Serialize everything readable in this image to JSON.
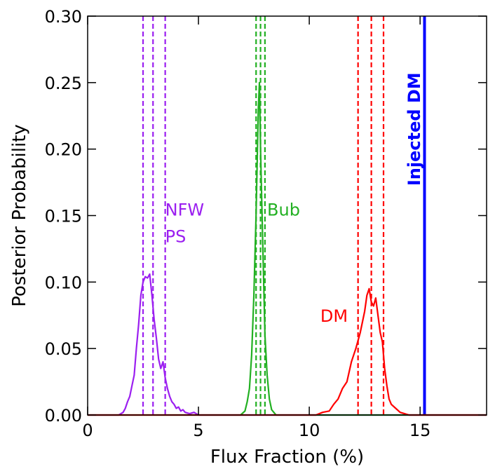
{
  "chart_data": {
    "type": "line",
    "title": "",
    "xlabel": "Flux Fraction (%)",
    "ylabel": "Posterior Probability",
    "xlim": [
      0,
      18
    ],
    "ylim": [
      0,
      0.3
    ],
    "xticks": [
      0,
      5,
      10,
      15
    ],
    "xtick_labels": [
      "0",
      "5",
      "10",
      "15"
    ],
    "yticks": [
      0,
      0.05,
      0.1,
      0.15,
      0.2,
      0.25,
      0.3
    ],
    "ytick_labels": [
      "0.00",
      "0.05",
      "0.10",
      "0.15",
      "0.20",
      "0.25",
      "0.30"
    ],
    "grid": false,
    "series": [
      {
        "name": "NFW PS",
        "color": "#9b1ff0",
        "x": [
          0,
          1.4,
          1.6,
          1.7,
          1.8,
          1.9,
          2.0,
          2.1,
          2.2,
          2.3,
          2.4,
          2.5,
          2.6,
          2.7,
          2.8,
          2.9,
          3.0,
          3.1,
          3.2,
          3.3,
          3.4,
          3.5,
          3.6,
          3.7,
          3.8,
          3.9,
          4.0,
          4.1,
          4.2,
          4.3,
          4.4,
          4.6,
          4.8,
          5.0,
          5.2,
          18
        ],
        "y": [
          0,
          0,
          0.002,
          0.005,
          0.01,
          0.014,
          0.022,
          0.03,
          0.05,
          0.068,
          0.09,
          0.1,
          0.104,
          0.103,
          0.106,
          0.09,
          0.072,
          0.058,
          0.042,
          0.035,
          0.04,
          0.028,
          0.02,
          0.014,
          0.01,
          0.008,
          0.005,
          0.006,
          0.003,
          0.004,
          0.002,
          0.001,
          0.002,
          0.0,
          0.0,
          0
        ]
      },
      {
        "name": "Bub",
        "color": "#22b022",
        "x": [
          0,
          6.9,
          7.1,
          7.2,
          7.3,
          7.4,
          7.5,
          7.6,
          7.7,
          7.75,
          7.8,
          7.9,
          8.0,
          8.1,
          8.2,
          8.3,
          8.5,
          18
        ],
        "y": [
          0,
          0,
          0.003,
          0.01,
          0.02,
          0.045,
          0.09,
          0.15,
          0.23,
          0.25,
          0.2,
          0.13,
          0.06,
          0.03,
          0.012,
          0.004,
          0.0,
          0
        ]
      },
      {
        "name": "DM",
        "color": "#ff0000",
        "x": [
          0,
          10.3,
          10.6,
          10.9,
          11.1,
          11.3,
          11.5,
          11.7,
          11.9,
          12.1,
          12.3,
          12.5,
          12.6,
          12.7,
          12.8,
          12.9,
          13.0,
          13.1,
          13.2,
          13.3,
          13.4,
          13.5,
          13.6,
          13.7,
          13.9,
          14.1,
          14.3,
          14.5,
          18
        ],
        "y": [
          0,
          0,
          0.002,
          0.003,
          0.008,
          0.012,
          0.02,
          0.025,
          0.04,
          0.05,
          0.062,
          0.078,
          0.09,
          0.095,
          0.085,
          0.082,
          0.088,
          0.075,
          0.062,
          0.055,
          0.035,
          0.022,
          0.012,
          0.008,
          0.005,
          0.002,
          0.001,
          0.0,
          0
        ]
      }
    ],
    "vertical_lines": [
      {
        "group": "NFW PS",
        "x": 2.5,
        "style": "dashed",
        "color": "#9b1ff0"
      },
      {
        "group": "NFW PS",
        "x": 2.95,
        "style": "dashed",
        "color": "#9b1ff0"
      },
      {
        "group": "NFW PS",
        "x": 3.5,
        "style": "dashed",
        "color": "#9b1ff0"
      },
      {
        "group": "Bub",
        "x": 7.6,
        "style": "dashed",
        "color": "#22b022"
      },
      {
        "group": "Bub",
        "x": 7.8,
        "style": "dashed",
        "color": "#22b022"
      },
      {
        "group": "Bub",
        "x": 8.0,
        "style": "dashed",
        "color": "#22b022"
      },
      {
        "group": "DM",
        "x": 12.2,
        "style": "dashed",
        "color": "#ff0000"
      },
      {
        "group": "DM",
        "x": 12.8,
        "style": "dashed",
        "color": "#ff0000"
      },
      {
        "group": "DM",
        "x": 13.35,
        "style": "dashed",
        "color": "#ff0000"
      },
      {
        "group": "Injected DM",
        "x": 15.2,
        "style": "solid",
        "color": "#0000ff"
      }
    ],
    "annotations": [
      {
        "text": "NFW",
        "x": 3.5,
        "y": 0.15,
        "color": "#9b1ff0"
      },
      {
        "text": "PS",
        "x": 3.5,
        "y": 0.13,
        "color": "#9b1ff0"
      },
      {
        "text": "Bub",
        "x": 8.1,
        "y": 0.15,
        "color": "#22b022"
      },
      {
        "text": "DM",
        "x": 10.5,
        "y": 0.07,
        "color": "#ff0000"
      },
      {
        "text": "Injected DM",
        "x": 15.0,
        "y": 0.215,
        "color": "#0000ff",
        "rotation": -90,
        "bold": true
      }
    ]
  }
}
